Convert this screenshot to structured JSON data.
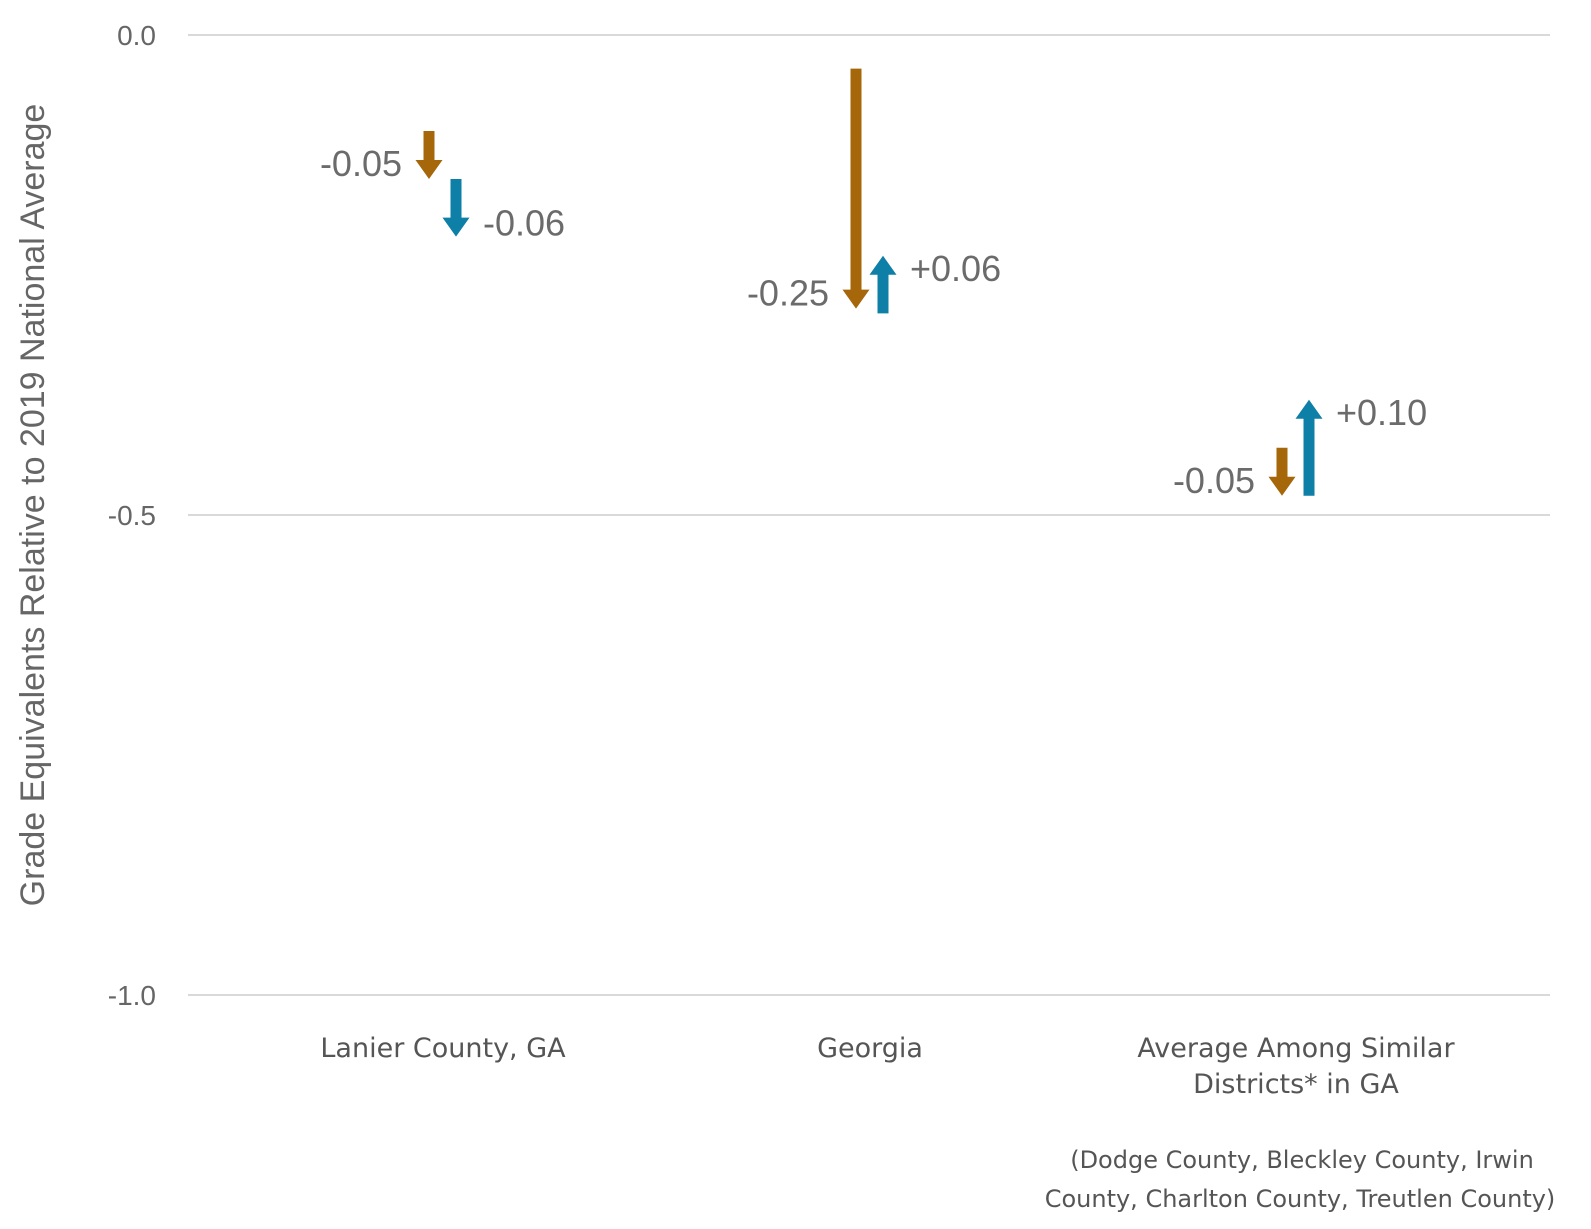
{
  "chart_data": {
    "type": "arrow",
    "ylabel": "Grade Equivalents Relative to 2019 National Average",
    "ylim": [
      -1.0,
      0.0
    ],
    "yticks": [
      {
        "value": 0.0,
        "label": "0.0"
      },
      {
        "value": -0.5,
        "label": "-0.5"
      },
      {
        "value": -1.0,
        "label": "-1.0"
      }
    ],
    "grid": true,
    "categories": [
      {
        "lines": [
          "Lanier County, GA"
        ]
      },
      {
        "lines": [
          "Georgia"
        ]
      },
      {
        "lines": [
          "Average Among Similar",
          "Districts* in GA"
        ]
      }
    ],
    "series": [
      {
        "color": "#a5670a",
        "segments": [
          {
            "from": -0.1,
            "to": -0.15,
            "label": "-0.05"
          },
          {
            "from": -0.035,
            "to": -0.285,
            "label": "-0.25"
          },
          {
            "from": -0.43,
            "to": -0.48,
            "label": "-0.05"
          }
        ]
      },
      {
        "color": "#0e7fa6",
        "segments": [
          {
            "from": -0.15,
            "to": -0.21,
            "label": "-0.06"
          },
          {
            "from": -0.29,
            "to": -0.23,
            "label": "+0.06"
          },
          {
            "from": -0.48,
            "to": -0.38,
            "label": "+0.10"
          }
        ]
      }
    ],
    "footnote": [
      "(Dodge County, Bleckley County, Irwin",
      "County, Charlton County, Treutlen County)"
    ]
  }
}
